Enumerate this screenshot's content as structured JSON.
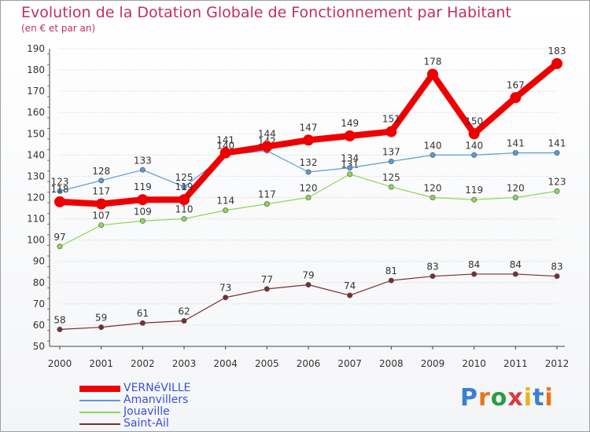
{
  "title": "Evolution de la Dotation Globale de Fonctionnement par Habitant",
  "subtitle": "(en € et par an)",
  "logo": {
    "text": "Proxiti",
    "colors": [
      "#3b7fd0",
      "#e8731a",
      "#2a9d40",
      "#d93b3b",
      "#e8b21a",
      "#3b7fd0",
      "#e8731a"
    ]
  },
  "colors": {
    "title": "#c0305a",
    "legend_text": "#3a4fe0",
    "grid": "#d0d0d0",
    "axis": "#444444"
  },
  "chart_data": {
    "type": "line",
    "title": "Evolution de la Dotation Globale de Fonctionnement par Habitant",
    "subtitle": "(en € et par an)",
    "xlabel": "",
    "ylabel": "",
    "categories": [
      "2000",
      "2001",
      "2002",
      "2003",
      "2004",
      "2005",
      "2006",
      "2007",
      "2008",
      "2009",
      "2010",
      "2011",
      "2012"
    ],
    "ylim": [
      50,
      190
    ],
    "yticks": [
      50,
      60,
      70,
      80,
      90,
      100,
      110,
      120,
      130,
      140,
      150,
      160,
      170,
      180,
      190
    ],
    "grid": true,
    "legend_position": "bottom-left",
    "series": [
      {
        "name": "VERNéVILLE",
        "key": "verneville",
        "color": "#ee0000",
        "values": [
          118,
          117,
          119,
          119,
          141,
          144,
          147,
          149,
          151,
          178,
          150,
          167,
          183
        ]
      },
      {
        "name": "Amanvillers",
        "key": "amanvillers",
        "color": "#5b9bd5",
        "values": [
          123,
          128,
          133,
          125,
          140,
          142,
          132,
          134,
          137,
          140,
          140,
          141,
          141
        ]
      },
      {
        "name": "Jouaville",
        "key": "jouaville",
        "color": "#8fd45a",
        "values": [
          97,
          107,
          109,
          110,
          114,
          117,
          120,
          131,
          125,
          120,
          119,
          120,
          123
        ]
      },
      {
        "name": "Saint-Ail",
        "key": "saint-ail",
        "color": "#7a2e2e",
        "values": [
          58,
          59,
          61,
          62,
          73,
          77,
          79,
          74,
          81,
          83,
          84,
          84,
          83
        ]
      }
    ]
  }
}
